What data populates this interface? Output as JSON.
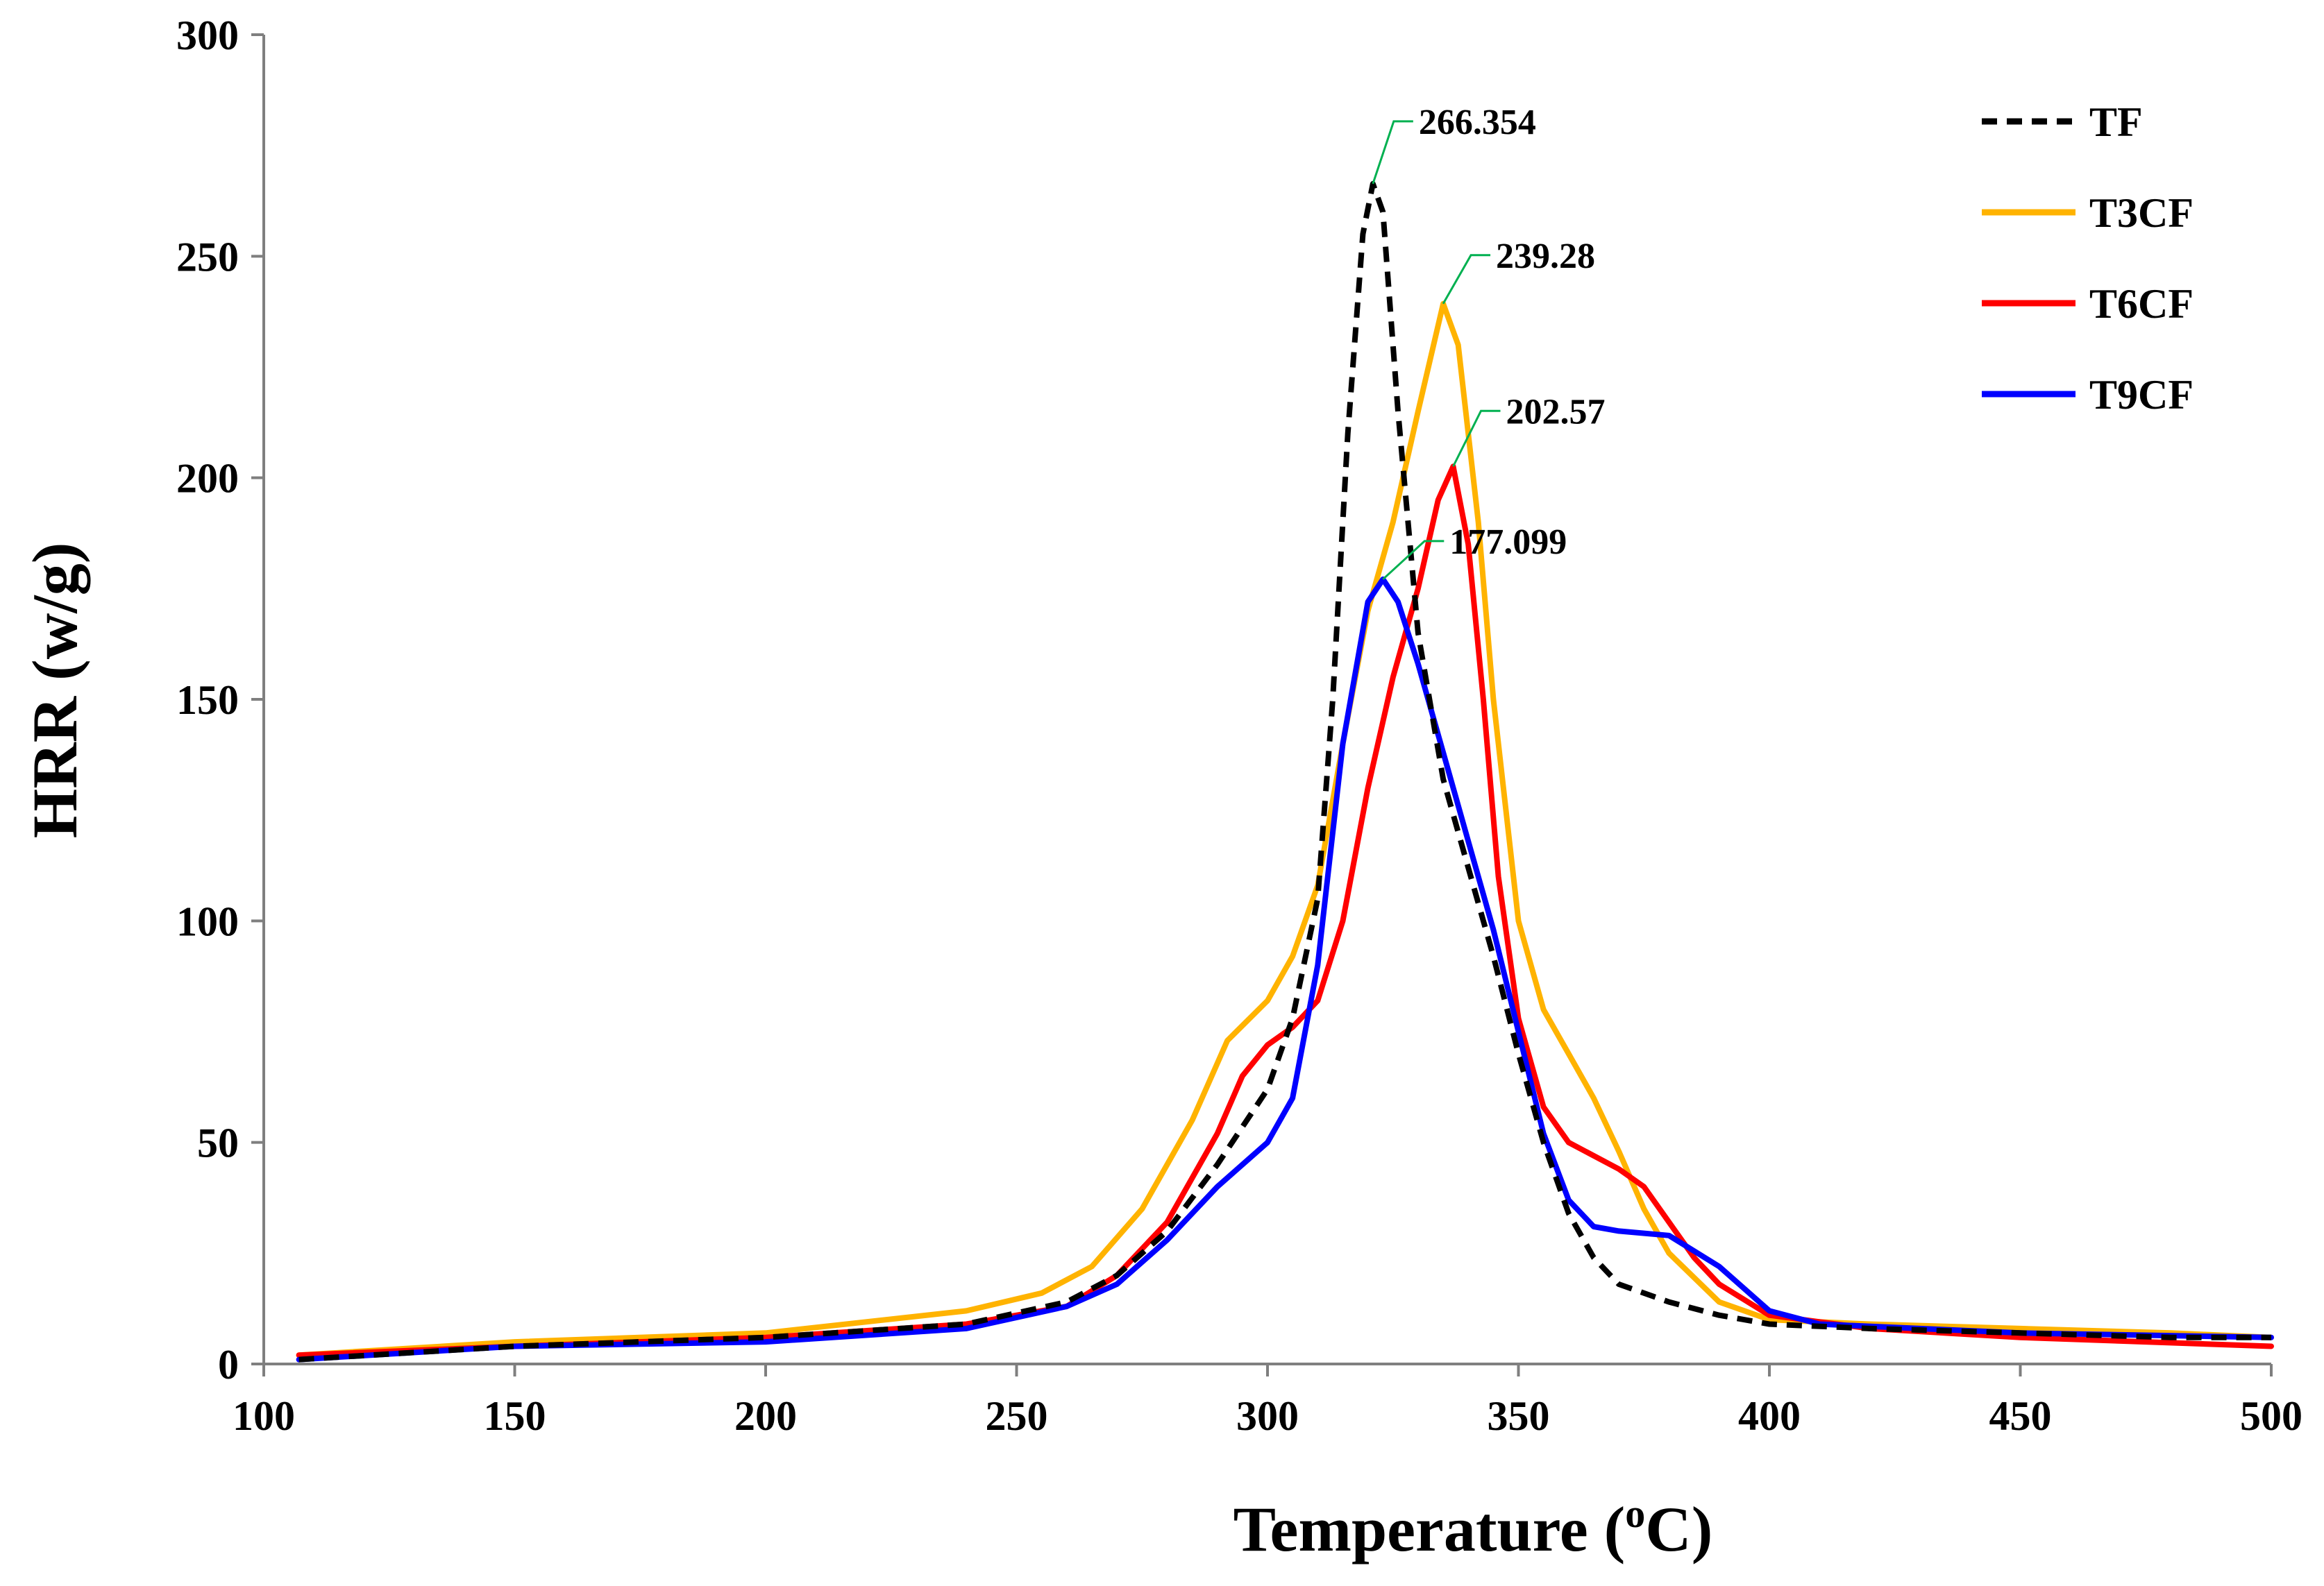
{
  "chart_data": {
    "type": "line",
    "title": "",
    "xlabel": "Temperature (",
    "xlabel_sup": "o",
    "xlabel_unit": "C)",
    "ylabel": "HRR (w/g)",
    "xlim": [
      100,
      500
    ],
    "ylim": [
      0,
      300
    ],
    "x_ticks": [
      "100",
      "150",
      "200",
      "250",
      "300",
      "350",
      "400",
      "450",
      "500"
    ],
    "y_ticks": [
      "0",
      "50",
      "100",
      "150",
      "200",
      "250",
      "300"
    ],
    "x_tick_values": [
      100,
      150,
      200,
      250,
      300,
      350,
      400,
      450,
      500
    ],
    "y_tick_values": [
      0,
      50,
      100,
      150,
      200,
      250,
      300
    ],
    "grid": false,
    "legend_position": "top-right",
    "series": [
      {
        "name": "TF",
        "color": "#000000",
        "dashed": true,
        "x": [
          107,
          150,
          200,
          240,
          260,
          270,
          280,
          290,
          300,
          305,
          310,
          313,
          316,
          319,
          321,
          323,
          326,
          330,
          335,
          340,
          345,
          350,
          355,
          360,
          365,
          370,
          380,
          390,
          400,
          420,
          450,
          480,
          500
        ],
        "y": [
          1,
          4,
          6,
          9,
          14,
          20,
          30,
          45,
          62,
          78,
          105,
          150,
          210,
          255,
          266.354,
          260,
          215,
          165,
          132,
          112,
          92,
          70,
          50,
          34,
          24,
          18,
          14,
          11,
          9,
          8,
          7,
          6,
          6
        ]
      },
      {
        "name": "T3CF",
        "color": "#FFB300",
        "dashed": false,
        "x": [
          107,
          150,
          200,
          240,
          255,
          265,
          275,
          285,
          292,
          300,
          305,
          310,
          315,
          320,
          325,
          330,
          335,
          338,
          342,
          345,
          350,
          355,
          360,
          365,
          370,
          375,
          380,
          390,
          400,
          420,
          450,
          480,
          500
        ],
        "y": [
          2,
          5,
          7,
          12,
          16,
          22,
          35,
          55,
          73,
          82,
          92,
          108,
          140,
          170,
          190,
          215,
          239.28,
          230,
          190,
          150,
          100,
          80,
          70,
          60,
          48,
          35,
          25,
          14,
          10,
          9,
          8,
          7,
          6
        ]
      },
      {
        "name": "T6CF",
        "color": "#FF0000",
        "dashed": false,
        "x": [
          107,
          150,
          200,
          240,
          260,
          270,
          280,
          290,
          295,
          300,
          305,
          310,
          315,
          320,
          325,
          330,
          334,
          337,
          340,
          343,
          346,
          350,
          355,
          360,
          370,
          375,
          380,
          385,
          390,
          400,
          420,
          450,
          500
        ],
        "y": [
          2,
          4,
          6,
          9,
          13,
          20,
          32,
          52,
          65,
          72,
          76,
          82,
          100,
          130,
          155,
          175,
          195,
          202.57,
          185,
          150,
          110,
          78,
          58,
          50,
          44,
          40,
          32,
          24,
          18,
          11,
          8,
          6,
          4
        ]
      },
      {
        "name": "T9CF",
        "color": "#0000FF",
        "dashed": false,
        "x": [
          107,
          150,
          200,
          240,
          260,
          270,
          280,
          290,
          300,
          305,
          310,
          315,
          320,
          323,
          326,
          330,
          335,
          340,
          345,
          350,
          355,
          360,
          365,
          370,
          380,
          390,
          400,
          410,
          450,
          500
        ],
        "y": [
          1,
          4,
          5,
          8,
          13,
          18,
          28,
          40,
          50,
          60,
          90,
          140,
          172,
          177.099,
          172,
          158,
          138,
          118,
          98,
          75,
          52,
          37,
          31,
          30,
          29,
          22,
          12,
          9,
          7,
          6
        ]
      }
    ],
    "annotations": [
      {
        "text": "266.354",
        "x": 321,
        "y": 266.354,
        "series": "TF"
      },
      {
        "text": "239.28",
        "x": 335,
        "y": 239.28,
        "series": "T3CF"
      },
      {
        "text": "202.57",
        "x": 337,
        "y": 202.57,
        "series": "T6CF"
      },
      {
        "text": "177.099",
        "x": 323,
        "y": 177.099,
        "series": "T9CF"
      }
    ],
    "annotation_line_color": "#00B050"
  }
}
